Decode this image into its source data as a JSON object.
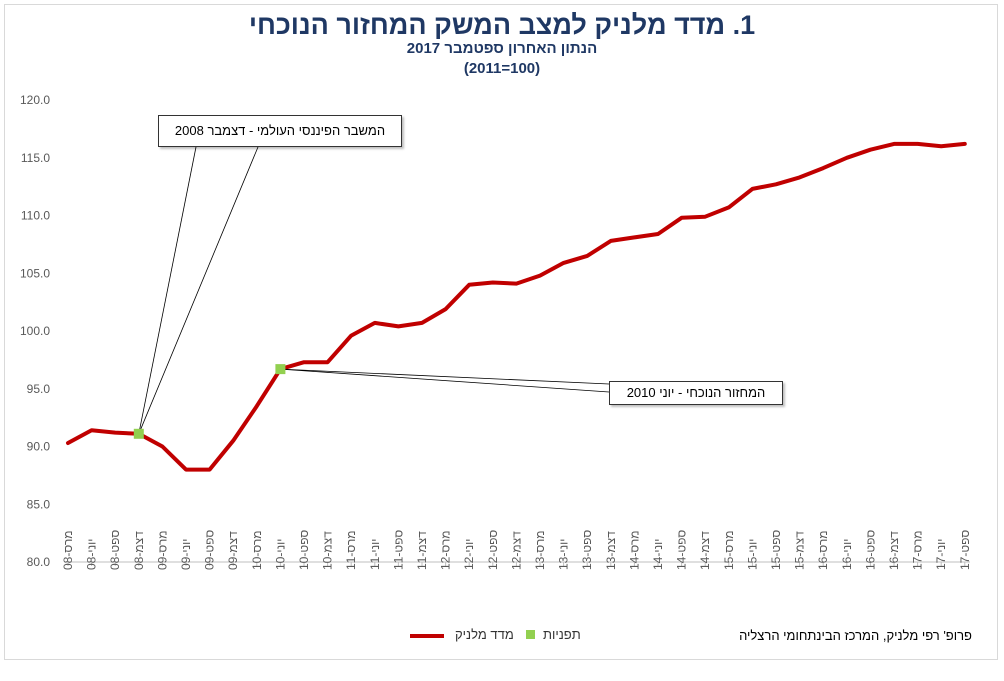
{
  "title": "1. מדד מלניק למצב המשק המחזור הנוכחי",
  "subtitle": "הנתון האחרון ספטמבר 2017",
  "subtitle2": "(2011=100)",
  "source": "פרופ' רפי מלניק, המרכז הבינתחומי הרצליה",
  "legend": {
    "index": "מדד מלניק",
    "turning_points": "תפניות"
  },
  "colors": {
    "series": "#c00000",
    "turning_points": "#92d050",
    "title": "#1f3864"
  },
  "annotations": [
    {
      "text": "המשבר הפיננסי העולמי - דצמבר 2008",
      "x": "2008-12",
      "y": 91.1
    },
    {
      "text": "המחזור הנוכחי - יוני 2010",
      "x": "2010-06",
      "y": 96.7
    }
  ],
  "chart_data": {
    "type": "line",
    "ylim": [
      80,
      120
    ],
    "yticks": [
      "80.0",
      "85.0",
      "90.0",
      "95.0",
      "100.0",
      "105.0",
      "110.0",
      "115.0",
      "120.0"
    ],
    "xticks": [
      "מרס-08",
      "יוני-08",
      "ספט-08",
      "דצמ-08",
      "מרס-09",
      "יוני-09",
      "ספט-09",
      "דצמ-09",
      "מרס-10",
      "יוני-10",
      "ספט-10",
      "דצמ-10",
      "מרס-11",
      "יוני-11",
      "ספט-11",
      "דצמ-11",
      "מרס-12",
      "יוני-12",
      "ספט-12",
      "דצמ-12",
      "מרס-13",
      "יוני-13",
      "ספט-13",
      "דצמ-13",
      "מרס-14",
      "יוני-14",
      "ספט-14",
      "דצמ-14",
      "מרס-15",
      "יוני-15",
      "ספט-15",
      "דצמ-15",
      "מרס-16",
      "יוני-16",
      "ספט-16",
      "דצמ-16",
      "מרס-17",
      "יוני-17",
      "ספט-17"
    ],
    "x": [
      "2008-03",
      "2008-06",
      "2008-09",
      "2008-12",
      "2009-03",
      "2009-06",
      "2009-09",
      "2009-12",
      "2010-03",
      "2010-06",
      "2010-09",
      "2010-12",
      "2011-03",
      "2011-06",
      "2011-09",
      "2011-12",
      "2012-03",
      "2012-06",
      "2012-09",
      "2012-12",
      "2013-03",
      "2013-06",
      "2013-09",
      "2013-12",
      "2014-03",
      "2014-06",
      "2014-09",
      "2014-12",
      "2015-03",
      "2015-06",
      "2015-09",
      "2015-12",
      "2016-03",
      "2016-06",
      "2016-09",
      "2016-12",
      "2017-03",
      "2017-06",
      "2017-09"
    ],
    "series": [
      {
        "name": "מדד מלניק",
        "values": [
          90.3,
          91.4,
          91.2,
          91.1,
          90.0,
          88.0,
          88.0,
          90.5,
          93.5,
          96.7,
          97.3,
          97.3,
          99.6,
          100.7,
          100.4,
          100.7,
          101.9,
          104.0,
          104.2,
          104.1,
          104.8,
          105.9,
          106.5,
          107.8,
          108.1,
          108.4,
          109.8,
          109.9,
          110.7,
          112.3,
          112.7,
          113.3,
          114.1,
          115.0,
          115.7,
          116.2,
          116.2,
          116.0,
          116.2
        ]
      }
    ],
    "turning_points": [
      {
        "x": "2008-12",
        "y": 91.1
      },
      {
        "x": "2010-06",
        "y": 96.7
      }
    ],
    "grid": false
  }
}
